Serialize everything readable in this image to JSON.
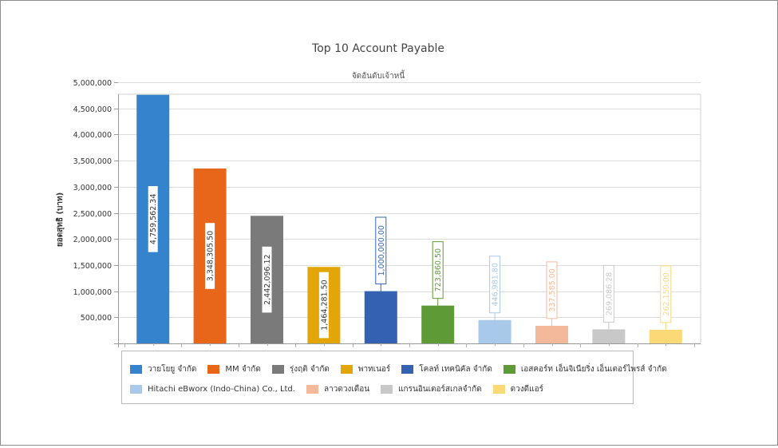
{
  "chart_data": {
    "type": "bar",
    "title": "Top 10 Account Payable",
    "subtitle": "จัดอันดับเจ้าหนี้",
    "ylabel": "ยอดสุทธิ (บาท)",
    "xlabel": "",
    "ylim": [
      0,
      5000000
    ],
    "grid": true,
    "legend_position": "bottom",
    "y_ticks": [
      500000,
      1000000,
      1500000,
      2000000,
      2500000,
      3000000,
      3500000,
      4000000,
      4500000,
      5000000
    ],
    "y_tick_labels": [
      "500,000",
      "1,000,000",
      "1,500,000",
      "2,000,000",
      "2,500,000",
      "3,000,000",
      "3,500,000",
      "4,000,000",
      "4,500,000",
      "5,000,000"
    ],
    "categories": [
      "วายโยยู จำกัด",
      "MM จำกัด",
      "รุ่งฤติ จำกัด",
      "พาทเนอร์",
      "โคลท์ เทคนิคัล จำกัด",
      "เอสคอร์ท เอ็นจิเนียริ่ง เอ็นเตอร์ไพรส์ จำกัด",
      "Hitachi eBworx (Indo-China) Co., Ltd.",
      "ลาวดวงเดือน",
      "แกรนอินเตอร์สเกลจำกัด",
      "ดวงดีแอร์"
    ],
    "values": [
      4759562.34,
      3348305.5,
      2442096.12,
      1464281.5,
      1000000.0,
      723860.5,
      446981.8,
      337585.0,
      269086.28,
      262150.0
    ],
    "value_labels": [
      "4,759,562.34",
      "3,348,305.50",
      "2,442,096.12",
      "1,464,281.50",
      "1,000,000.00",
      "723,860.50",
      "446,981.80",
      "337,585.00",
      "269,086.28",
      "262,150.00"
    ],
    "colors": [
      "#3483cc",
      "#e8661a",
      "#7a7a7a",
      "#e2a608",
      "#3461b2",
      "#5e9a35",
      "#a8c9ea",
      "#f4b99a",
      "#c8c8c8",
      "#fbd976"
    ]
  }
}
